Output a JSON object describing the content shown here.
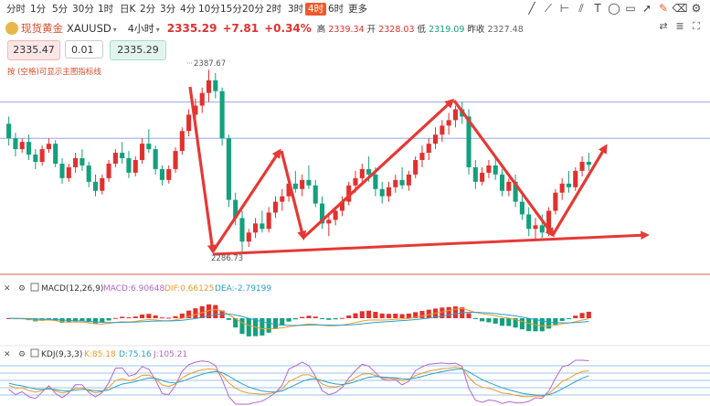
{
  "toolbar": {
    "timeframes": [
      "分时",
      "1分",
      "5分",
      "30分",
      "1时",
      "日K",
      "2分",
      "3分",
      "4分",
      "10分",
      "15分",
      "20分",
      "2时",
      "3时",
      "4时",
      "6时",
      "更多"
    ],
    "active_index": 14,
    "right_icons": [
      "trend-line-icon",
      "ray-icon",
      "measure-icon",
      "parallel-icon",
      "text-tool-icon",
      "ellipse-icon",
      "rectangle-icon",
      "arrow-icon",
      "edit-icon",
      "eraser-icon",
      "settings-icon"
    ]
  },
  "info": {
    "name": "现货黄金",
    "symbol": "XAUUSD",
    "period": "4小时",
    "price": "2335.29",
    "change": "+7.81",
    "change_pct": "+0.34%",
    "high_label": "高",
    "high": "2339.34",
    "open_label": "开",
    "open": "2328.03",
    "low_label": "低",
    "low": "2319.09",
    "prev_label": "昨收",
    "prev": "2327.48"
  },
  "order": {
    "sell_price": "2335.47",
    "quantity": "0.01",
    "buy_price": "2335.29"
  },
  "hint": "按 (空格)可显示主图指标线",
  "colors": {
    "up": "#e0312f",
    "down": "#13a07d",
    "accent": "#f05a2a"
  },
  "chart_data": {
    "type": "candlestick",
    "price_labels": {
      "high_marker": "2387.67",
      "low_marker": "2286.73"
    },
    "y_range": [
      2280,
      2395
    ],
    "candles": [
      [
        2358,
        2362,
        2346,
        2350
      ],
      [
        2350,
        2353,
        2340,
        2344
      ],
      [
        2344,
        2350,
        2342,
        2348
      ],
      [
        2348,
        2352,
        2338,
        2341
      ],
      [
        2341,
        2344,
        2333,
        2337
      ],
      [
        2337,
        2346,
        2335,
        2344
      ],
      [
        2344,
        2350,
        2342,
        2347
      ],
      [
        2347,
        2349,
        2334,
        2336
      ],
      [
        2336,
        2339,
        2325,
        2328
      ],
      [
        2328,
        2336,
        2326,
        2334
      ],
      [
        2334,
        2342,
        2331,
        2339
      ],
      [
        2339,
        2344,
        2332,
        2335
      ],
      [
        2335,
        2337,
        2323,
        2326
      ],
      [
        2326,
        2330,
        2318,
        2321
      ],
      [
        2321,
        2330,
        2319,
        2328
      ],
      [
        2328,
        2338,
        2326,
        2336
      ],
      [
        2336,
        2344,
        2334,
        2342
      ],
      [
        2342,
        2348,
        2336,
        2339
      ],
      [
        2339,
        2343,
        2328,
        2331
      ],
      [
        2331,
        2340,
        2329,
        2338
      ],
      [
        2338,
        2350,
        2336,
        2347
      ],
      [
        2347,
        2355,
        2342,
        2344
      ],
      [
        2344,
        2346,
        2330,
        2333
      ],
      [
        2333,
        2335,
        2324,
        2327
      ],
      [
        2327,
        2335,
        2325,
        2333
      ],
      [
        2333,
        2345,
        2331,
        2343
      ],
      [
        2343,
        2356,
        2341,
        2354
      ],
      [
        2354,
        2366,
        2351,
        2363
      ],
      [
        2363,
        2372,
        2359,
        2368
      ],
      [
        2368,
        2378,
        2364,
        2375
      ],
      [
        2375,
        2387.67,
        2370,
        2382
      ],
      [
        2382,
        2386,
        2372,
        2376
      ],
      [
        2376,
        2378,
        2346,
        2350
      ],
      [
        2350,
        2352,
        2312,
        2316
      ],
      [
        2316,
        2320,
        2302,
        2306
      ],
      [
        2306,
        2310,
        2286.73,
        2293
      ],
      [
        2293,
        2300,
        2290,
        2298
      ],
      [
        2298,
        2306,
        2295,
        2303
      ],
      [
        2303,
        2310,
        2298,
        2300
      ],
      [
        2300,
        2312,
        2298,
        2309
      ],
      [
        2309,
        2318,
        2306,
        2315
      ],
      [
        2315,
        2322,
        2310,
        2318
      ],
      [
        2318,
        2328,
        2315,
        2325
      ],
      [
        2325,
        2332,
        2320,
        2322
      ],
      [
        2322,
        2330,
        2318,
        2327
      ],
      [
        2327,
        2335,
        2322,
        2324
      ],
      [
        2324,
        2327,
        2312,
        2314
      ],
      [
        2314,
        2318,
        2300,
        2303
      ],
      [
        2303,
        2308,
        2296,
        2305
      ],
      [
        2305,
        2312,
        2302,
        2310
      ],
      [
        2310,
        2318,
        2307,
        2315
      ],
      [
        2315,
        2326,
        2313,
        2324
      ],
      [
        2324,
        2332,
        2320,
        2328
      ],
      [
        2328,
        2336,
        2326,
        2333
      ],
      [
        2333,
        2340,
        2326,
        2330
      ],
      [
        2330,
        2334,
        2318,
        2322
      ],
      [
        2322,
        2326,
        2314,
        2318
      ],
      [
        2318,
        2326,
        2315,
        2323
      ],
      [
        2323,
        2330,
        2320,
        2327
      ],
      [
        2327,
        2334,
        2322,
        2324
      ],
      [
        2324,
        2332,
        2321,
        2330
      ],
      [
        2330,
        2340,
        2328,
        2338
      ],
      [
        2338,
        2346,
        2334,
        2342
      ],
      [
        2342,
        2350,
        2338,
        2347
      ],
      [
        2347,
        2356,
        2344,
        2352
      ],
      [
        2352,
        2360,
        2348,
        2357
      ],
      [
        2357,
        2364,
        2352,
        2360
      ],
      [
        2360,
        2368,
        2356,
        2366
      ],
      [
        2366,
        2370,
        2358,
        2362
      ],
      [
        2362,
        2366,
        2330,
        2334
      ],
      [
        2334,
        2338,
        2322,
        2326
      ],
      [
        2326,
        2334,
        2324,
        2331
      ],
      [
        2331,
        2338,
        2328,
        2335
      ],
      [
        2335,
        2340,
        2327,
        2330
      ],
      [
        2330,
        2333,
        2318,
        2321
      ],
      [
        2321,
        2328,
        2318,
        2326
      ],
      [
        2326,
        2330,
        2312,
        2315
      ],
      [
        2315,
        2320,
        2305,
        2308
      ],
      [
        2308,
        2312,
        2296,
        2300
      ],
      [
        2300,
        2306,
        2294,
        2302
      ],
      [
        2302,
        2308,
        2295,
        2298
      ],
      [
        2298,
        2312,
        2296,
        2310
      ],
      [
        2310,
        2322,
        2308,
        2320
      ],
      [
        2320,
        2328,
        2316,
        2325
      ],
      [
        2325,
        2332,
        2320,
        2323
      ],
      [
        2323,
        2334,
        2321,
        2332
      ],
      [
        2332,
        2340,
        2329,
        2337
      ],
      [
        2337,
        2342,
        2332,
        2335.29
      ]
    ],
    "reference_lines": [
      2370,
      2350
    ],
    "macd": {
      "label": "MACD(12,26,9)",
      "macd": "MACD:6.90648",
      "dif": "DIF:0.66125",
      "dea": "DEA:-2.79199"
    },
    "kdj": {
      "label": "KDJ(9,3,3)",
      "k": "K:85.18",
      "d": "D:75.16",
      "j": "J:105.21"
    }
  }
}
